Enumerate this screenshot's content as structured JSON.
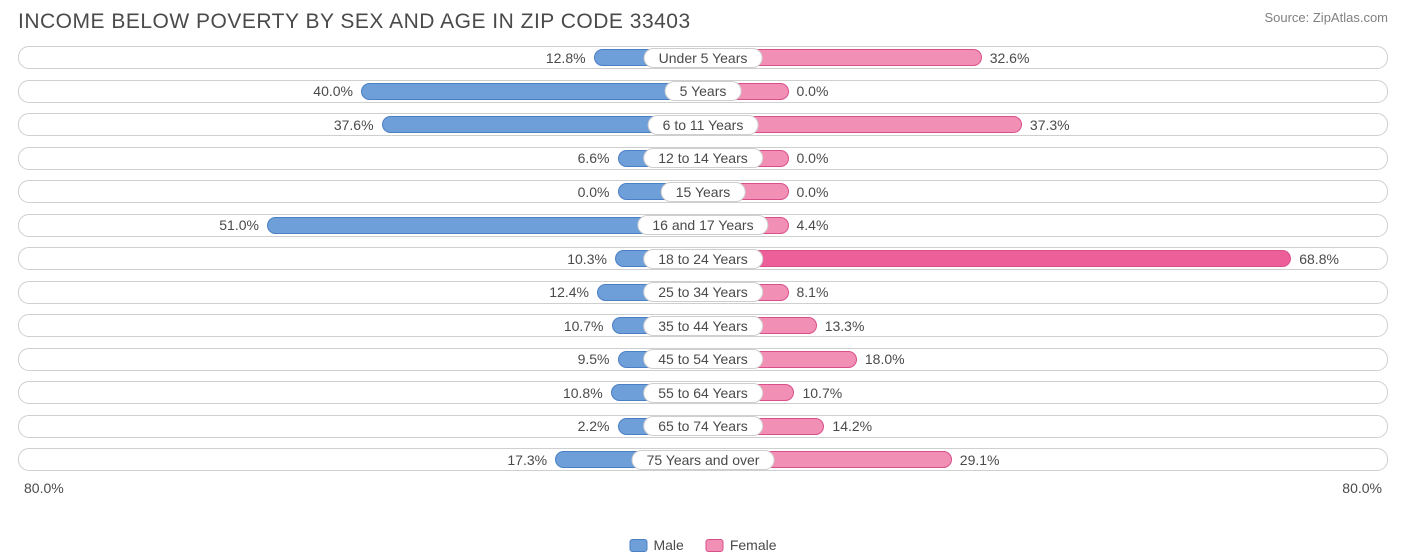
{
  "title": "INCOME BELOW POVERTY BY SEX AND AGE IN ZIP CODE 33403",
  "source": "Source: ZipAtlas.com",
  "chart": {
    "type": "diverging-bar",
    "axis_max": 80.0,
    "axis_label_left": "80.0%",
    "axis_label_right": "80.0%",
    "min_bar_pct": 10.0,
    "male_fill": "#6f9fd8",
    "male_stroke": "#4a7fc4",
    "female_fill": "#f28fb4",
    "female_stroke": "#d94f8a",
    "female_highlight_fill": "#ec5f99",
    "row_border": "#cfcfcf",
    "label_color": "#4a4a4a",
    "background": "#ffffff",
    "label_fontsize": 14,
    "title_fontsize": 21,
    "legend": [
      {
        "label": "Male",
        "color": "#6f9fd8",
        "stroke": "#4a7fc4"
      },
      {
        "label": "Female",
        "color": "#f28fb4",
        "stroke": "#d94f8a"
      }
    ],
    "rows": [
      {
        "category": "Under 5 Years",
        "male": 12.8,
        "female": 32.6
      },
      {
        "category": "5 Years",
        "male": 40.0,
        "female": 0.0
      },
      {
        "category": "6 to 11 Years",
        "male": 37.6,
        "female": 37.3
      },
      {
        "category": "12 to 14 Years",
        "male": 6.6,
        "female": 0.0
      },
      {
        "category": "15 Years",
        "male": 0.0,
        "female": 0.0
      },
      {
        "category": "16 and 17 Years",
        "male": 51.0,
        "female": 4.4
      },
      {
        "category": "18 to 24 Years",
        "male": 10.3,
        "female": 68.8,
        "female_highlight": true
      },
      {
        "category": "25 to 34 Years",
        "male": 12.4,
        "female": 8.1
      },
      {
        "category": "35 to 44 Years",
        "male": 10.7,
        "female": 13.3
      },
      {
        "category": "45 to 54 Years",
        "male": 9.5,
        "female": 18.0
      },
      {
        "category": "55 to 64 Years",
        "male": 10.8,
        "female": 10.7
      },
      {
        "category": "65 to 74 Years",
        "male": 2.2,
        "female": 14.2
      },
      {
        "category": "75 Years and over",
        "male": 17.3,
        "female": 29.1
      }
    ]
  }
}
